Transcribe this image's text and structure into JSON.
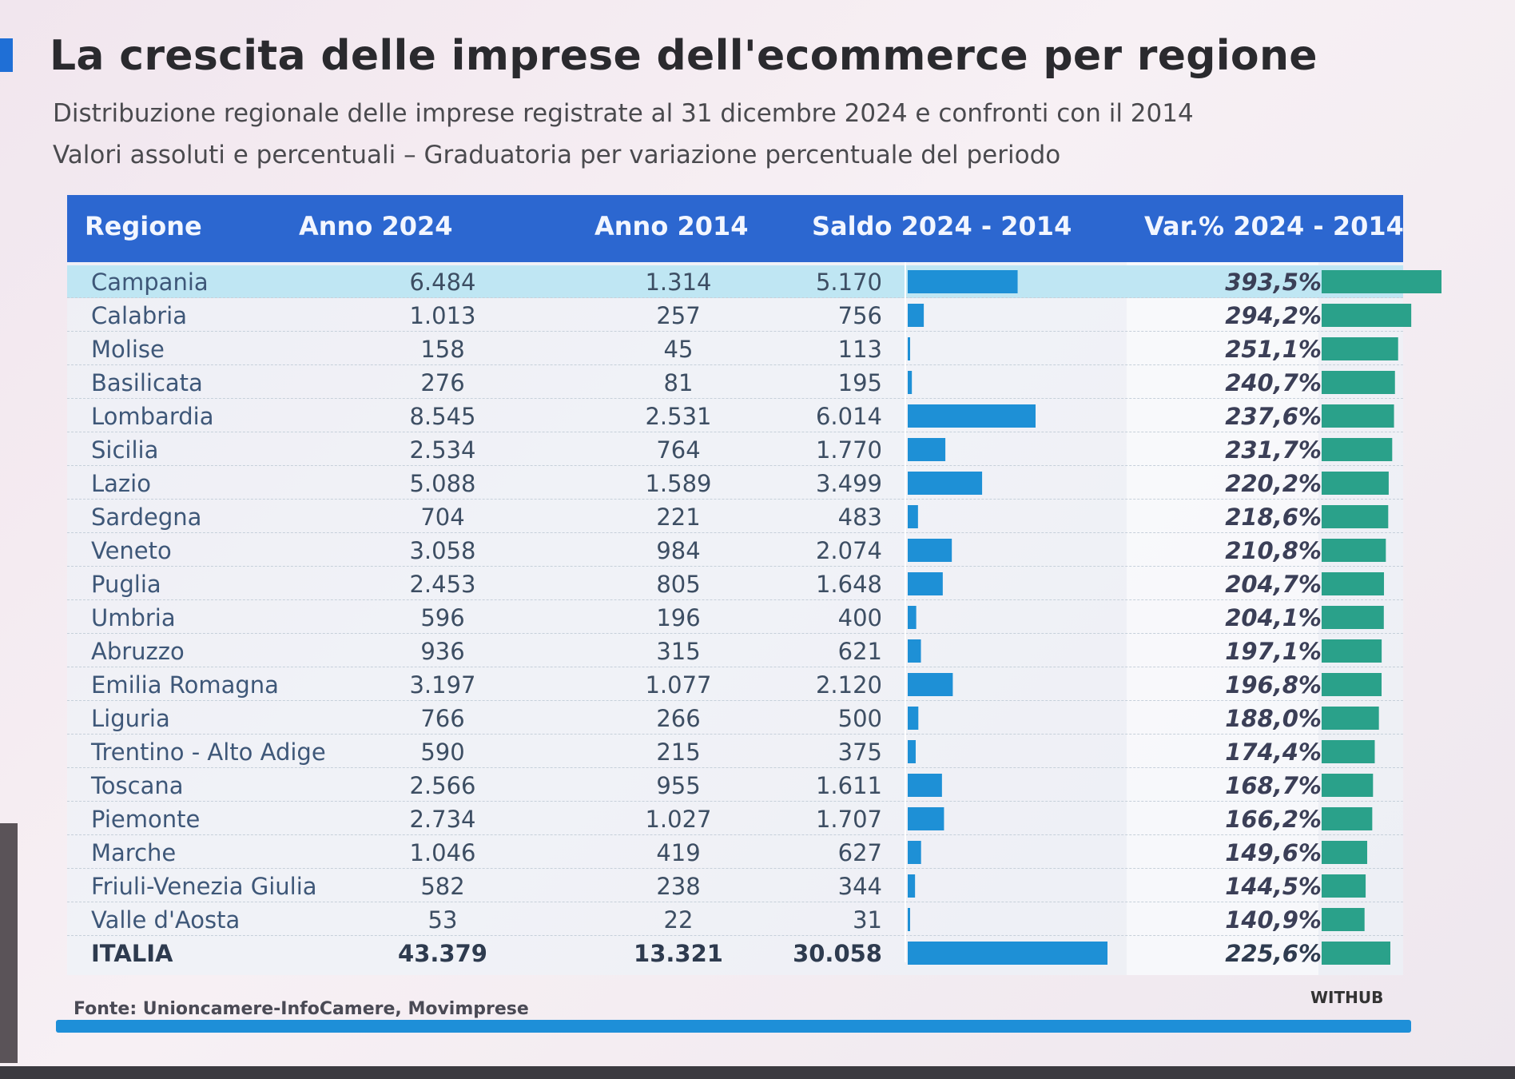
{
  "title": "La crescita delle imprese dell'ecommerce per regione",
  "subtitle_line1": "Distribuzione regionale delle imprese registrate al 31 dicembre 2024 e confronti con il 2014",
  "subtitle_line2": "Valori assoluti e percentuali – Graduatoria per variazione percentuale del periodo",
  "headers": {
    "region": "Regione",
    "y2024": "Anno 2024",
    "y2014": "Anno 2014",
    "saldo": "Saldo 2024 - 2014",
    "var": "Var.% 2024 - 2014"
  },
  "source": "Fonte: Unioncamere-InfoCamere, Movimprese",
  "brand": "WITHUB",
  "colors": {
    "header": "#2c67d0",
    "saldo_bar": "#1e90d6",
    "var_bar": "#2aa18a",
    "highlight_row": "#bfe6f3"
  },
  "chart_data": {
    "type": "table",
    "columns": [
      "Regione",
      "Anno 2024",
      "Anno 2014",
      "Saldo 2024 - 2014",
      "Var.% 2024 - 2014"
    ],
    "rows": [
      {
        "region": "Campania",
        "y2024": "6.484",
        "y2014": "1.314",
        "saldo": "5.170",
        "var": "393,5%",
        "saldo_value": 5170,
        "var_value": 393.5,
        "highlight": true
      },
      {
        "region": "Calabria",
        "y2024": "1.013",
        "y2014": "257",
        "saldo": "756",
        "var": "294,2%",
        "saldo_value": 756,
        "var_value": 294.2
      },
      {
        "region": "Molise",
        "y2024": "158",
        "y2014": "45",
        "saldo": "113",
        "var": "251,1%",
        "saldo_value": 113,
        "var_value": 251.1
      },
      {
        "region": "Basilicata",
        "y2024": "276",
        "y2014": "81",
        "saldo": "195",
        "var": "240,7%",
        "saldo_value": 195,
        "var_value": 240.7
      },
      {
        "region": "Lombardia",
        "y2024": "8.545",
        "y2014": "2.531",
        "saldo": "6.014",
        "var": "237,6%",
        "saldo_value": 6014,
        "var_value": 237.6
      },
      {
        "region": "Sicilia",
        "y2024": "2.534",
        "y2014": "764",
        "saldo": "1.770",
        "var": "231,7%",
        "saldo_value": 1770,
        "var_value": 231.7
      },
      {
        "region": "Lazio",
        "y2024": "5.088",
        "y2014": "1.589",
        "saldo": "3.499",
        "var": "220,2%",
        "saldo_value": 3499,
        "var_value": 220.2
      },
      {
        "region": "Sardegna",
        "y2024": "704",
        "y2014": "221",
        "saldo": "483",
        "var": "218,6%",
        "saldo_value": 483,
        "var_value": 218.6
      },
      {
        "region": "Veneto",
        "y2024": "3.058",
        "y2014": "984",
        "saldo": "2.074",
        "var": "210,8%",
        "saldo_value": 2074,
        "var_value": 210.8
      },
      {
        "region": "Puglia",
        "y2024": "2.453",
        "y2014": "805",
        "saldo": "1.648",
        "var": "204,7%",
        "saldo_value": 1648,
        "var_value": 204.7
      },
      {
        "region": "Umbria",
        "y2024": "596",
        "y2014": "196",
        "saldo": "400",
        "var": "204,1%",
        "saldo_value": 400,
        "var_value": 204.1
      },
      {
        "region": "Abruzzo",
        "y2024": "936",
        "y2014": "315",
        "saldo": "621",
        "var": "197,1%",
        "saldo_value": 621,
        "var_value": 197.1
      },
      {
        "region": "Emilia Romagna",
        "y2024": "3.197",
        "y2014": "1.077",
        "saldo": "2.120",
        "var": "196,8%",
        "saldo_value": 2120,
        "var_value": 196.8
      },
      {
        "region": "Liguria",
        "y2024": "766",
        "y2014": "266",
        "saldo": "500",
        "var": "188,0%",
        "saldo_value": 500,
        "var_value": 188.0
      },
      {
        "region": "Trentino - Alto Adige",
        "y2024": "590",
        "y2014": "215",
        "saldo": "375",
        "var": "174,4%",
        "saldo_value": 375,
        "var_value": 174.4
      },
      {
        "region": "Toscana",
        "y2024": "2.566",
        "y2014": "955",
        "saldo": "1.611",
        "var": "168,7%",
        "saldo_value": 1611,
        "var_value": 168.7
      },
      {
        "region": "Piemonte",
        "y2024": "2.734",
        "y2014": "1.027",
        "saldo": "1.707",
        "var": "166,2%",
        "saldo_value": 1707,
        "var_value": 166.2
      },
      {
        "region": "Marche",
        "y2024": "1.046",
        "y2014": "419",
        "saldo": "627",
        "var": "149,6%",
        "saldo_value": 627,
        "var_value": 149.6
      },
      {
        "region": "Friuli-Venezia Giulia",
        "y2024": "582",
        "y2014": "238",
        "saldo": "344",
        "var": "144,5%",
        "saldo_value": 344,
        "var_value": 144.5
      },
      {
        "region": "Valle d'Aosta",
        "y2024": "53",
        "y2014": "22",
        "saldo": "31",
        "var": "140,9%",
        "saldo_value": 31,
        "var_value": 140.9
      },
      {
        "region": "ITALIA",
        "y2024": "43.379",
        "y2014": "13.321",
        "saldo": "30.058",
        "var": "225,6%",
        "saldo_value": 30058,
        "var_value": 225.6,
        "total": true
      }
    ]
  }
}
